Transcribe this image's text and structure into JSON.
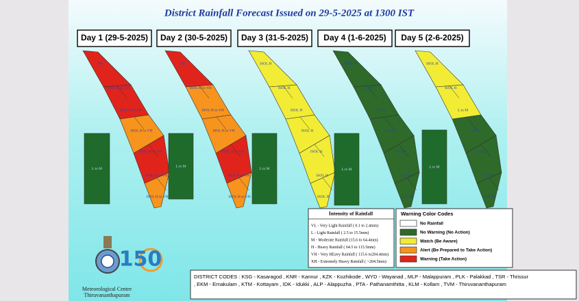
{
  "title": "District Rainfall Forecast Issued on  29-5-2025 at 1300 IST",
  "days": [
    {
      "label": "Day 1 (29-5-2025)",
      "zones": [
        "#e0241b",
        "#e0241b",
        "#f7941d",
        "#e0241b",
        "#f7941d"
      ],
      "island_color": "#1f6b2b",
      "island_label": "L to M",
      "labels": [
        "VH",
        "ISOL H to VH",
        "ISOL H to VH",
        "ISOL H to VH",
        "ISOL 'H to VH",
        "ISOL H to VH",
        "ISOL H to VH"
      ]
    },
    {
      "label": "Day 2 (30-5-2025)",
      "zones": [
        "#e0241b",
        "#f7941d",
        "#f7941d",
        "#e0241b",
        "#f7941d"
      ],
      "island_color": "#1f6b2b",
      "island_label": "L to M",
      "labels": [
        "VH",
        "ISOL H to VH",
        "ISOL H to VH",
        "ISOL H to VH",
        "ISOL 'H to VH",
        "ISOL H to VH",
        "ISOL H to VH"
      ]
    },
    {
      "label": "Day 3 (31-5-2025)",
      "zones": [
        "#f2ec35",
        "#f2ec35",
        "#f2ec35",
        "#f2ec35",
        "#f2ec35"
      ],
      "island_color": "#1f6b2b",
      "island_label": "L to M",
      "labels": [
        "ISOL H",
        "ISOL H",
        "ISOL H",
        "ISOL H",
        "ISOL H",
        "ISOL H",
        "ISOL H"
      ]
    },
    {
      "label": "Day 4 (1-6-2025)",
      "zones": [
        "#2e6a2a",
        "#2e6a2a",
        "#2e6a2a",
        "#2e6a2a",
        "#2e6a2a"
      ],
      "island_color": "#1f6b2b",
      "island_label": "L to M",
      "labels": [
        "ISOL H",
        "L to M",
        "L to M",
        "L to M",
        "L to M",
        "L to M",
        "L to M"
      ]
    },
    {
      "label": "Day 5 (2-6-2025)",
      "zones": [
        "#f2ec35",
        "#f2ec35",
        "#2e6a2a",
        "#2e6a2a",
        "#2e6a2a"
      ],
      "island_color": "#1f6b2b",
      "island_label": "L to M",
      "labels": [
        "ISOL H",
        "ISOL H",
        "L to M",
        "L to M",
        "L to M",
        "L to M",
        "L to M"
      ]
    }
  ],
  "intensity": {
    "title": "Intensity of Rainfall",
    "items": [
      "VL - Very Light Rainfall ( 0.1 to 2.4mm)",
      "L  - Light Rainfall ( 2.5 to 15.5mm)",
      "M - Moderate Rainfall (15.6 to 64.4mm)",
      "H - Heavy Rainfall ( 64.5 to 115.5mm)",
      "VH - Very HEavy Rainfall ( 115.6 to204.4mm)",
      "XH - Extremely Heavy Rainfall ( >204.5mm)"
    ]
  },
  "warning_codes": {
    "title": "Warning Color Codes",
    "items": [
      {
        "label": "No Rainfall",
        "color": "#ffffff"
      },
      {
        "label": "No Warning (No Action)",
        "color": "#2e6a2a"
      },
      {
        "label": "Watch (Be Aware)",
        "color": "#f2ec35"
      },
      {
        "label": "Alert (Be Prepared to Take Action)",
        "color": "#f7941d"
      },
      {
        "label": "Warning (Take Action)",
        "color": "#e0241b"
      }
    ]
  },
  "district_codes": [
    "DISTRICT CODES : KSG - Kasaragod , KNR - Kannur , KZK - Kozhikode , WYD - Wayanad , MLP - Malappuram , PLK - Palakkad , TSR - Thrissur",
    ", EKM - Ernakulam , KTM - Kottayam , IDK - Idukki , ALP - Alappuzha ,    PTA - Pathanamthitta , KLM - Kollam , TVM - Thiruvananthapuram"
  ],
  "logo": {
    "anniversary": "150",
    "org": [
      "Meteorological Centre",
      "Thiruvananthapuram"
    ]
  }
}
